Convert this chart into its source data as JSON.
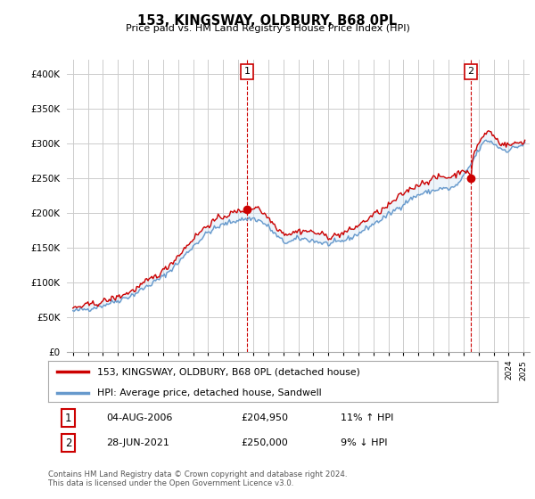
{
  "title": "153, KINGSWAY, OLDBURY, B68 0PL",
  "subtitle": "Price paid vs. HM Land Registry's House Price Index (HPI)",
  "ylim": [
    0,
    420000
  ],
  "yticks": [
    0,
    50000,
    100000,
    150000,
    200000,
    250000,
    300000,
    350000,
    400000
  ],
  "legend_line1": "153, KINGSWAY, OLDBURY, B68 0PL (detached house)",
  "legend_line2": "HPI: Average price, detached house, Sandwell",
  "annotation1_num": "1",
  "annotation1_date": "04-AUG-2006",
  "annotation1_price": "£204,950",
  "annotation1_hpi": "11% ↑ HPI",
  "annotation2_num": "2",
  "annotation2_date": "28-JUN-2021",
  "annotation2_price": "£250,000",
  "annotation2_hpi": "9% ↓ HPI",
  "footer": "Contains HM Land Registry data © Crown copyright and database right 2024.\nThis data is licensed under the Open Government Licence v3.0.",
  "line_color_red": "#cc0000",
  "line_color_blue": "#6699cc",
  "fill_color_blue": "#d0e4f5",
  "background_color": "#ffffff",
  "grid_color": "#cccccc",
  "annotation_vline_color": "#cc0000",
  "purchase1_x": 2006.58,
  "purchase1_y": 204950,
  "purchase2_x": 2021.49,
  "purchase2_y": 250000,
  "xlim_min": 1994.6,
  "xlim_max": 2025.4
}
